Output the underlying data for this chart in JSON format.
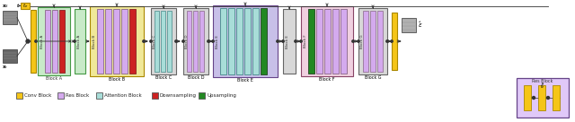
{
  "fig_width": 6.4,
  "fig_height": 1.36,
  "dpi": 100,
  "bg_color": "#ffffff",
  "legend_items": [
    {
      "label": "Conv Block",
      "color": "#f5c518"
    },
    {
      "label": "Res Block",
      "color": "#d4aaee"
    },
    {
      "label": "Attention Block",
      "color": "#a8ddd8"
    },
    {
      "label": "Downsampling",
      "color": "#cc2222"
    },
    {
      "label": "Upsampling",
      "color": "#228822"
    }
  ]
}
